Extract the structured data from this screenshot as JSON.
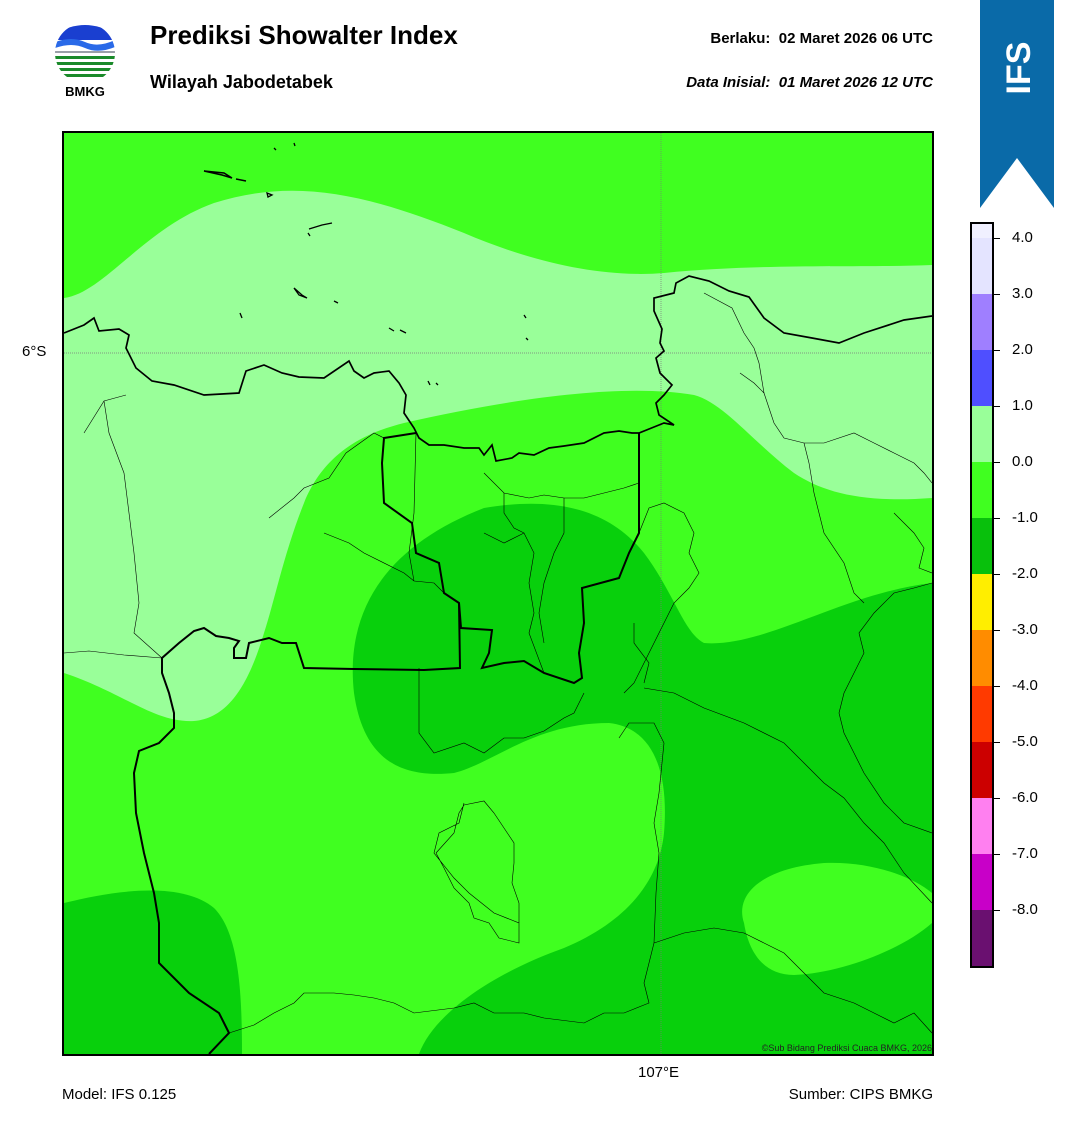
{
  "header": {
    "logo_text": "BMKG",
    "title": "Prediksi Showalter Index",
    "subtitle": "Wilayah Jabodetabek",
    "valid_label": "Berlaku:",
    "valid_value": "02 Maret 2026 06 UTC",
    "init_label": "Data Inisial:",
    "init_value": "01 Maret 2026 12 UTC",
    "badge_text": "IFS"
  },
  "map": {
    "lat_label": "6°S",
    "lon_label": "107°E",
    "credit": "©Sub Bidang Prediksi Cuaca BMKG, 2026",
    "colors": {
      "light_green": "#99ff99",
      "green": "#40ff20",
      "dark_green": "#08d00c"
    }
  },
  "footer": {
    "model": "Model: IFS 0.125",
    "source": "Sumber: CIPS BMKG"
  },
  "colorbar": {
    "labels": [
      "4.0",
      "3.0",
      "2.0",
      "1.0",
      "0.0",
      "-1.0",
      "-2.0",
      "-3.0",
      "-4.0",
      "-5.0",
      "-6.0",
      "-7.0",
      "-8.0"
    ],
    "colors": [
      "#f0f0ff",
      "#e4e4ff",
      "#9f7fff",
      "#4f4fff",
      "#99ff99",
      "#40ff20",
      "#08c00c",
      "#ffee00",
      "#ff8c00",
      "#ff3a00",
      "#cc0000",
      "#ff80f0",
      "#c800c8",
      "#6a1070"
    ]
  }
}
